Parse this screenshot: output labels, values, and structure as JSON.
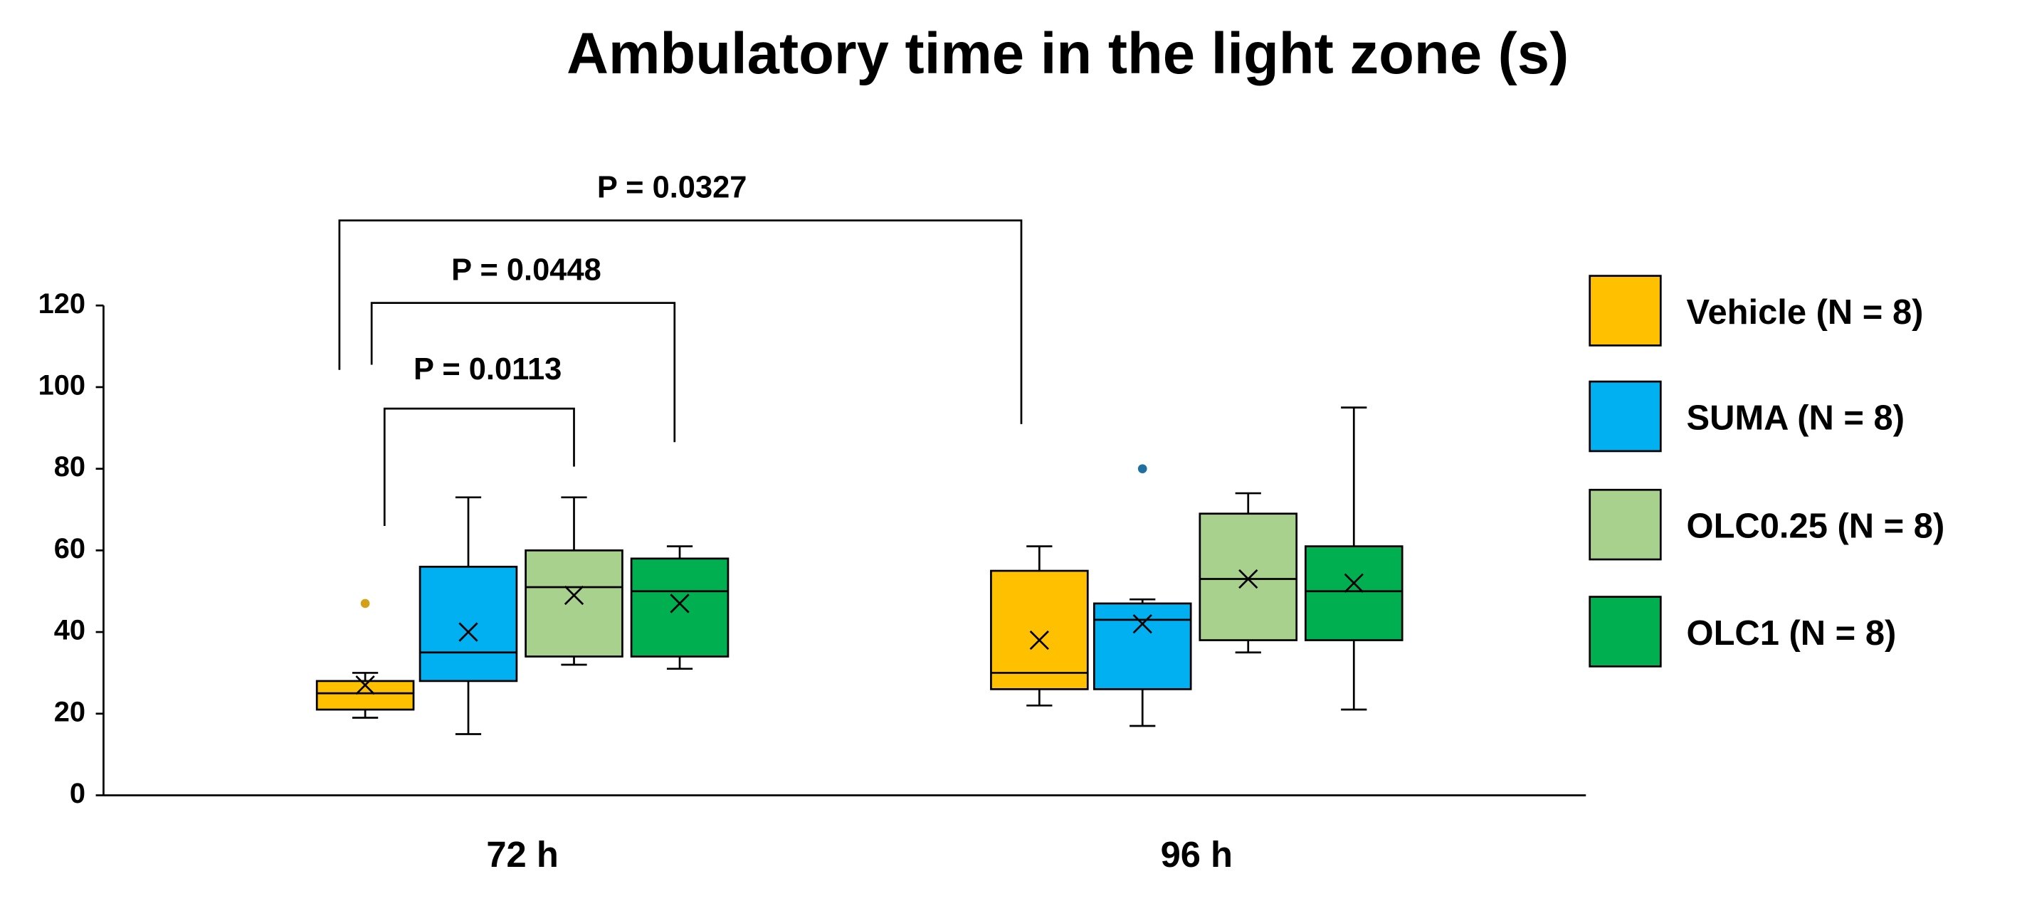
{
  "chart_data": {
    "type": "box",
    "title": "Ambulatory time in the light zone (s)",
    "categories": [
      "72 h",
      "96 h"
    ],
    "ylim": [
      0,
      120
    ],
    "yticks": [
      0,
      20,
      40,
      60,
      80,
      100,
      120
    ],
    "series": [
      {
        "name": "Vehicle (N = 8)",
        "color": "#ffc000",
        "values": [
          {
            "min": 19,
            "q1": 21,
            "median": 25,
            "q3": 28,
            "max": 30,
            "mean": 27,
            "outliers": [
              47
            ]
          },
          {
            "min": 22,
            "q1": 26,
            "median": 30,
            "q3": 55,
            "max": 61,
            "mean": 38,
            "outliers": []
          }
        ]
      },
      {
        "name": "SUMA (N = 8)",
        "color": "#00b0f0",
        "values": [
          {
            "min": 15,
            "q1": 28,
            "median": 35,
            "q3": 56,
            "max": 73,
            "mean": 40,
            "outliers": []
          },
          {
            "min": 17,
            "q1": 26,
            "median": 43,
            "q3": 47,
            "max": 48,
            "mean": 42,
            "outliers": [
              80
            ]
          }
        ]
      },
      {
        "name": "OLC0.25 (N = 8)",
        "color": "#a9d18e",
        "values": [
          {
            "min": 32,
            "q1": 34,
            "median": 51,
            "q3": 60,
            "max": 73,
            "mean": 49,
            "outliers": []
          },
          {
            "min": 35,
            "q1": 38,
            "median": 53,
            "q3": 69,
            "max": 74,
            "mean": 53,
            "outliers": []
          }
        ]
      },
      {
        "name": "OLC1 (N = 8)",
        "color": "#00b050",
        "values": [
          {
            "min": 31,
            "q1": 34,
            "median": 50,
            "q3": 58,
            "max": 61,
            "mean": 47,
            "outliers": []
          },
          {
            "min": 21,
            "q1": 38,
            "median": 50,
            "q3": 61,
            "max": 95,
            "mean": 52,
            "outliers": []
          }
        ]
      }
    ],
    "annotations": [
      "P = 0.0327",
      "P = 0.0448",
      "P = 0.0113"
    ],
    "legend": "right"
  }
}
